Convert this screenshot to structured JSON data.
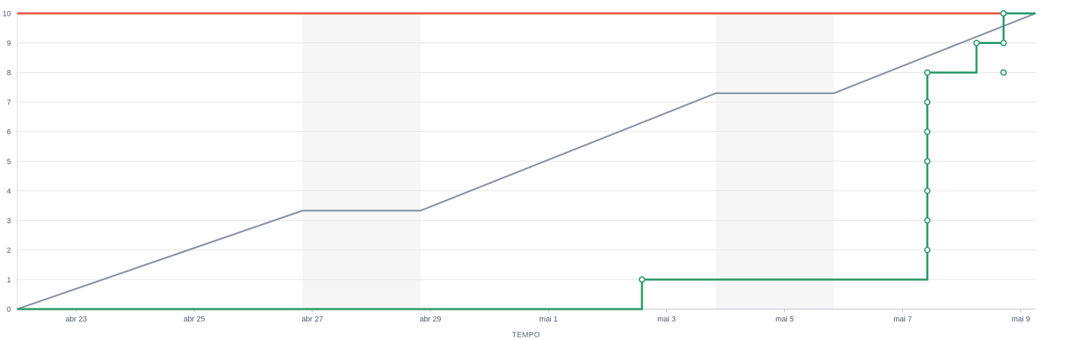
{
  "chart_data": {
    "type": "line",
    "xlabel": "TEMPO",
    "ylabel": "",
    "x_start": "2023-04-22",
    "x_end": "2023-05-09 06:00",
    "ylim": [
      0,
      10
    ],
    "yticks": [
      0,
      1,
      2,
      3,
      4,
      5,
      6,
      7,
      8,
      9,
      10
    ],
    "xticks": [
      {
        "date": "2023-04-23",
        "label": "abr 23"
      },
      {
        "date": "2023-04-25",
        "label": "abr 25"
      },
      {
        "date": "2023-04-27",
        "label": "abr 27"
      },
      {
        "date": "2023-04-29",
        "label": "abr 29"
      },
      {
        "date": "2023-05-01",
        "label": "mai 1"
      },
      {
        "date": "2023-05-03",
        "label": "mai 3"
      },
      {
        "date": "2023-05-05",
        "label": "mai 5"
      },
      {
        "date": "2023-05-07",
        "label": "mai 7"
      },
      {
        "date": "2023-05-09",
        "label": "mai 9"
      }
    ],
    "grid": true,
    "weekend_bands": [
      {
        "start": "2023-04-26 20:00",
        "end": "2023-04-28 20:00"
      },
      {
        "start": "2023-05-03 20:00",
        "end": "2023-05-05 20:00"
      }
    ],
    "band_color": "#f6f6f6",
    "series": [
      {
        "role": "scope",
        "color": "#e8574a",
        "points": [
          {
            "x": "2023-04-22",
            "y": 10
          },
          {
            "x": "2023-05-09 06:00",
            "y": 10
          }
        ]
      },
      {
        "role": "guideline",
        "color": "#8a93a3",
        "points": [
          {
            "x": "2023-04-22",
            "y": 0
          },
          {
            "x": "2023-04-26 20:00",
            "y": 3.33
          },
          {
            "x": "2023-04-28 20:00",
            "y": 3.33
          },
          {
            "x": "2023-05-03 20:00",
            "y": 7.3
          },
          {
            "x": "2023-05-05 20:00",
            "y": 7.3
          },
          {
            "x": "2023-05-09 06:00",
            "y": 10
          }
        ]
      },
      {
        "role": "completed",
        "color": "#2a9b6a",
        "step": true,
        "points": [
          {
            "x": "2023-04-22",
            "y": 0
          },
          {
            "x": "2023-05-02 14:00",
            "y": 0
          },
          {
            "x": "2023-05-02 14:00",
            "y": 1
          },
          {
            "x": "2023-05-07 10:00",
            "y": 1
          },
          {
            "x": "2023-05-07 10:00",
            "y": 8
          },
          {
            "x": "2023-05-08 06:00",
            "y": 8
          },
          {
            "x": "2023-05-08 06:00",
            "y": 9
          },
          {
            "x": "2023-05-08 17:00",
            "y": 9
          },
          {
            "x": "2023-05-08 17:00",
            "y": 10
          },
          {
            "x": "2023-05-09 06:00",
            "y": 10
          }
        ],
        "markers": [
          {
            "x": "2023-05-02 14:00",
            "y": 1
          },
          {
            "x": "2023-05-07 10:00",
            "y": 2
          },
          {
            "x": "2023-05-07 10:00",
            "y": 3
          },
          {
            "x": "2023-05-07 10:00",
            "y": 4
          },
          {
            "x": "2023-05-07 10:00",
            "y": 5
          },
          {
            "x": "2023-05-07 10:00",
            "y": 6
          },
          {
            "x": "2023-05-07 10:00",
            "y": 7
          },
          {
            "x": "2023-05-07 10:00",
            "y": 8
          },
          {
            "x": "2023-05-08 06:00",
            "y": 9
          },
          {
            "x": "2023-05-08 17:00",
            "y": 8
          },
          {
            "x": "2023-05-08 17:00",
            "y": 9
          },
          {
            "x": "2023-05-08 17:00",
            "y": 10
          }
        ]
      }
    ]
  }
}
